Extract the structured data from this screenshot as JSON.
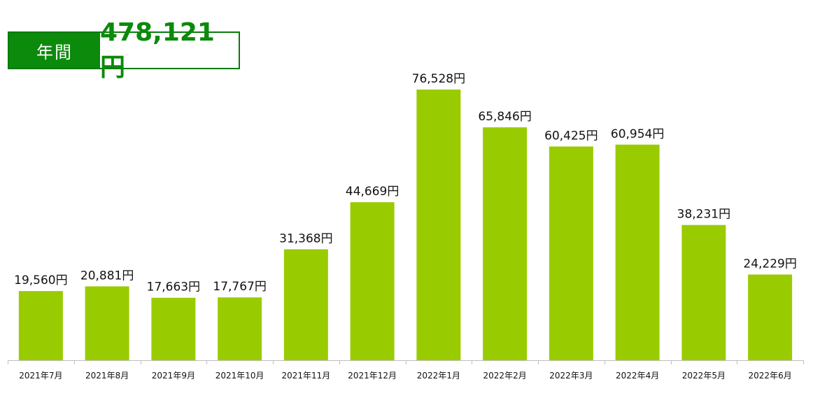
{
  "summary": {
    "label": "年間",
    "value": "478,121円"
  },
  "colors": {
    "bar": "#99cc00",
    "accent": "#0b8a0b",
    "axis": "#bfbfbf"
  },
  "chart_data": {
    "type": "bar",
    "categories": [
      "2021年7月",
      "2021年8月",
      "2021年9月",
      "2021年10月",
      "2021年11月",
      "2021年12月",
      "2022年1月",
      "2022年2月",
      "2022年3月",
      "2022年4月",
      "2022年5月",
      "2022年6月"
    ],
    "values": [
      19560,
      20881,
      17663,
      17767,
      31368,
      44669,
      76528,
      65846,
      60425,
      60954,
      38231,
      24229
    ],
    "data_labels": [
      "19,560円",
      "20,881円",
      "17,663円",
      "17,767円",
      "31,368円",
      "44,669円",
      "76,528円",
      "65,846円",
      "60,425円",
      "60,954円",
      "38,231円",
      "24,229円"
    ],
    "title": "",
    "xlabel": "",
    "ylabel": "",
    "ylim": [
      0,
      80000
    ],
    "grid": false,
    "legend": "none"
  }
}
